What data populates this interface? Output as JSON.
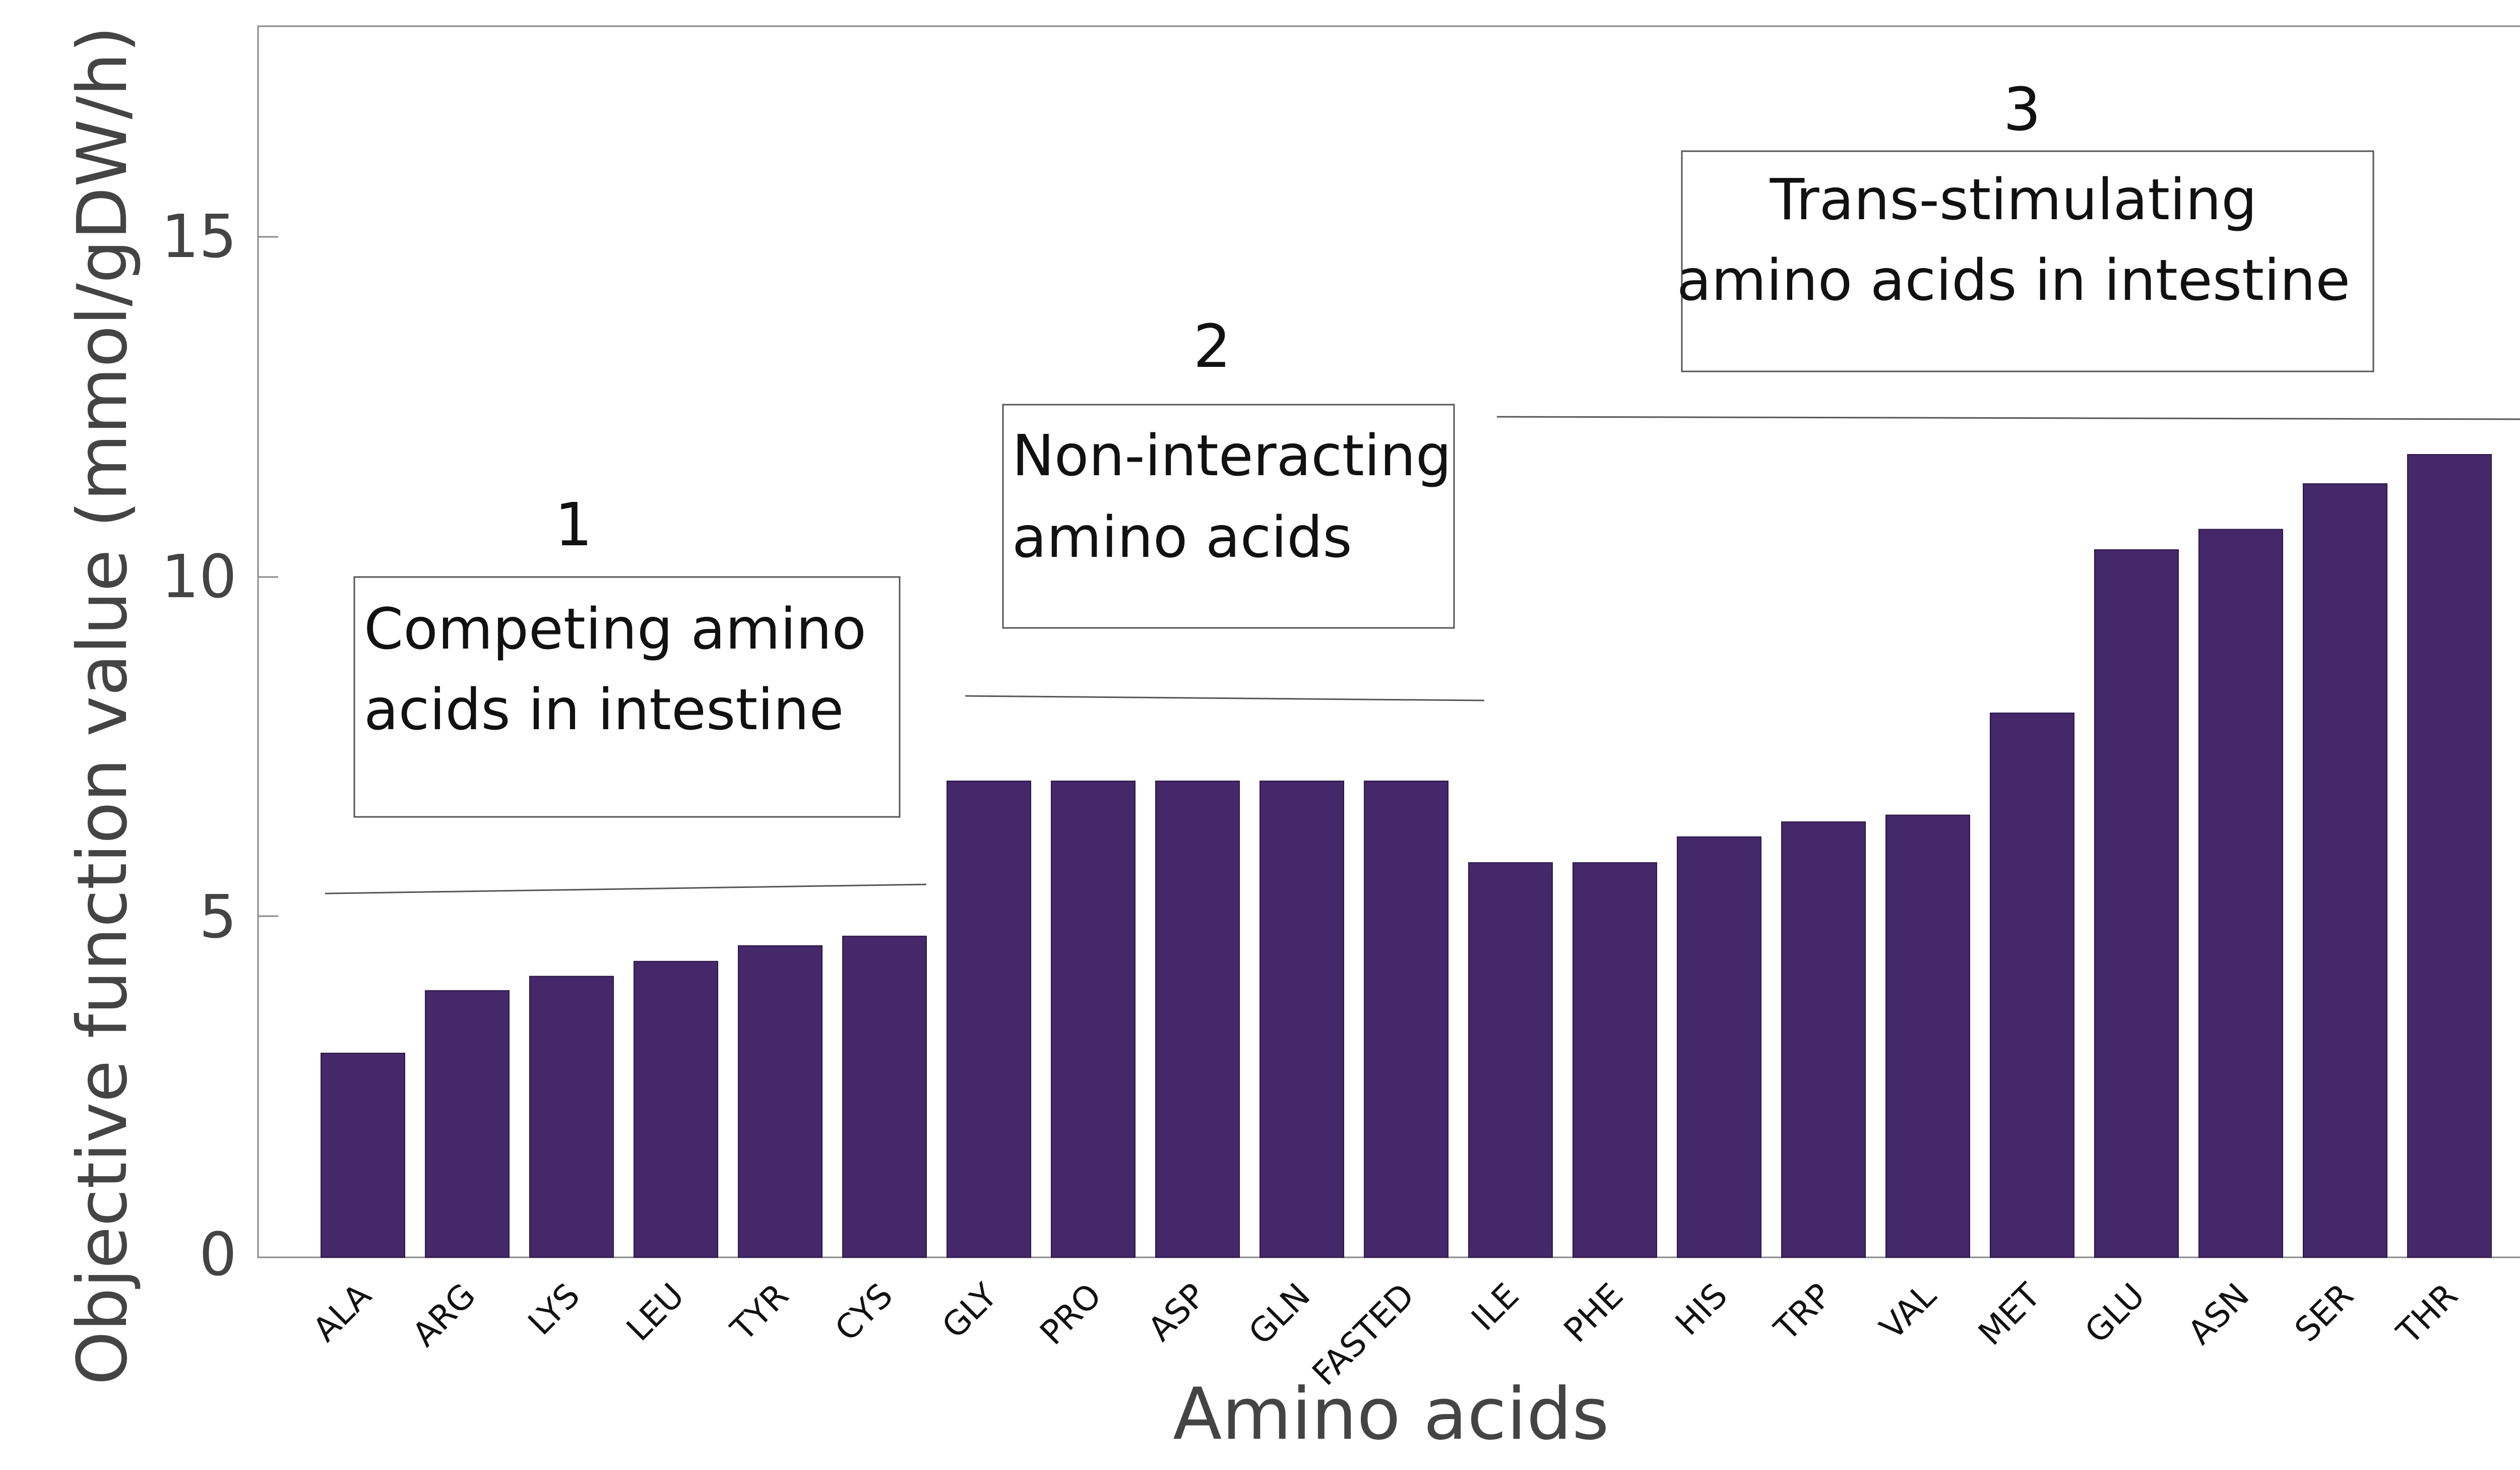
{
  "chart_data": {
    "type": "bar",
    "xlabel": "Amino acids",
    "ylabel": "Objective function value (mmol/gDW/h)",
    "ylim": [
      0,
      18
    ],
    "yticks": [
      0,
      5,
      10,
      15
    ],
    "grid": false,
    "bar_color": "#45286A",
    "categories": [
      "ALA",
      "ARG",
      "LYS",
      "LEU",
      "TYR",
      "CYS",
      "GLY",
      "PRO",
      "ASP",
      "GLN",
      "FASTED",
      "ILE",
      "PHE",
      "HIS",
      "TRP",
      "VAL",
      "MET",
      "GLU",
      "ASN",
      "SER",
      "THR"
    ],
    "values": [
      3.0,
      3.92,
      4.13,
      4.35,
      4.58,
      4.72,
      7.0,
      7.0,
      7.0,
      7.0,
      7.0,
      5.8,
      5.8,
      6.18,
      6.4,
      6.5,
      8.0,
      10.4,
      10.7,
      11.37,
      11.8
    ],
    "annotations": [
      {
        "number": "1",
        "lines": [
          "Competing amino",
          "acids in intestine"
        ]
      },
      {
        "number": "2",
        "lines": [
          "Non-interacting",
          "amino acids"
        ]
      },
      {
        "number": "3",
        "lines": [
          "Trans-stimulating",
          "amino acids in intestine"
        ]
      }
    ]
  }
}
